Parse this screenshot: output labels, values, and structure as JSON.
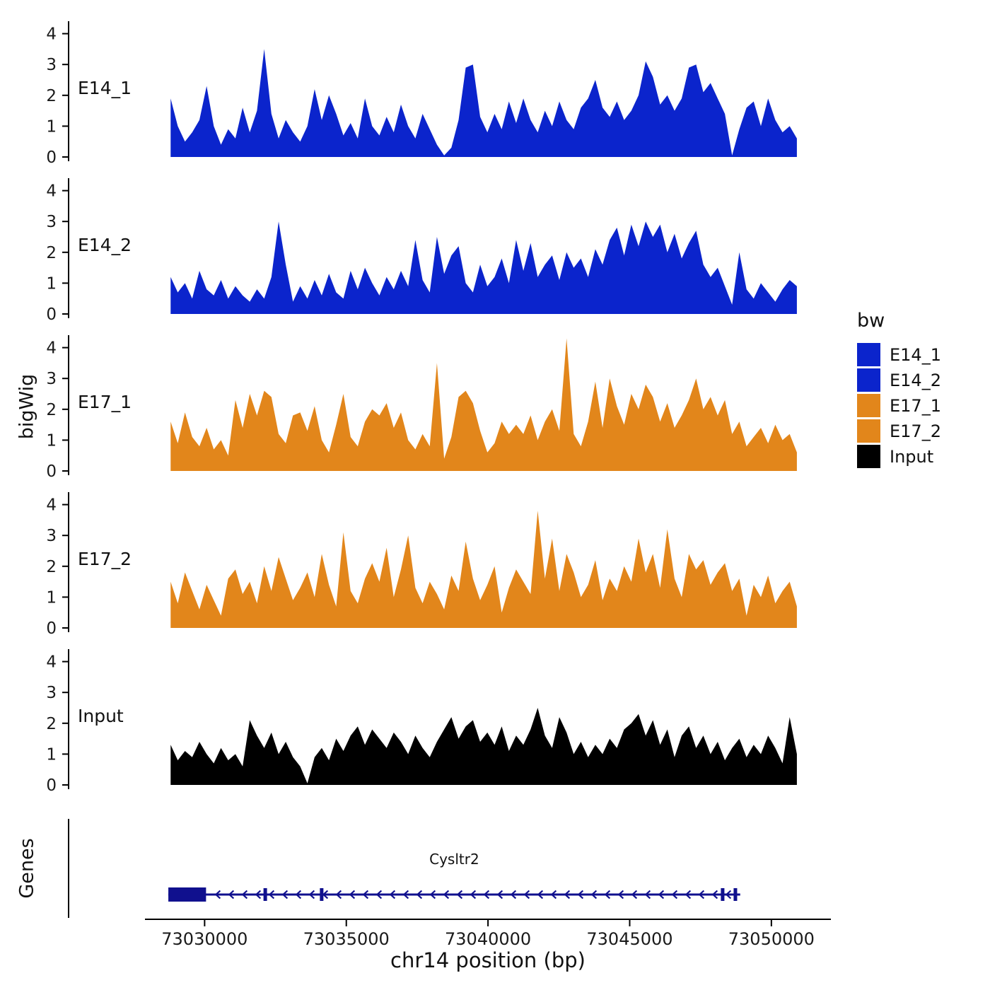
{
  "figure": {
    "ylabel": "bigWig",
    "genes_panel_label": "Genes",
    "xlabel": "chr14 position (bp)"
  },
  "legend": {
    "title": "bw",
    "entries": [
      {
        "label": "E14_1",
        "color": "#0b24cc"
      },
      {
        "label": "E14_2",
        "color": "#0b24cc"
      },
      {
        "label": "E17_1",
        "color": "#e2861b"
      },
      {
        "label": "E17_2",
        "color": "#e2861b"
      },
      {
        "label": "Input",
        "color": "#000000"
      }
    ]
  },
  "chart_data": {
    "type": "area",
    "title": "",
    "xlabel": "chr14 position (bp)",
    "ylabel": "bigWig",
    "xlim": [
      73025200,
      73052100
    ],
    "x_ticks": [
      73030000,
      73035000,
      73040000,
      73045000,
      73050000
    ],
    "ylim": [
      0,
      4.4
    ],
    "y_ticks": [
      0,
      1,
      2,
      3,
      4
    ],
    "grid": false,
    "legend_position": "right",
    "signal_x_start": 73028800,
    "signal_x_end": 73050900,
    "tracks": [
      {
        "name": "E14_1",
        "color": "#0b24cc",
        "values": [
          1.9,
          1.0,
          0.5,
          0.8,
          1.2,
          2.3,
          1.0,
          0.4,
          0.9,
          0.6,
          1.6,
          0.8,
          1.5,
          3.5,
          1.4,
          0.6,
          1.2,
          0.8,
          0.5,
          1.0,
          2.2,
          1.2,
          2.0,
          1.4,
          0.7,
          1.1,
          0.6,
          1.9,
          1.0,
          0.7,
          1.3,
          0.8,
          1.7,
          1.0,
          0.6,
          1.4,
          0.9,
          0.4,
          0.05,
          0.3,
          1.2,
          2.9,
          3.0,
          1.3,
          0.8,
          1.4,
          0.9,
          1.8,
          1.1,
          1.9,
          1.2,
          0.8,
          1.5,
          1.0,
          1.8,
          1.2,
          0.9,
          1.6,
          1.9,
          2.5,
          1.6,
          1.3,
          1.8,
          1.2,
          1.5,
          2.0,
          3.1,
          2.6,
          1.7,
          2.0,
          1.5,
          1.9,
          2.9,
          3.0,
          2.1,
          2.4,
          1.9,
          1.4,
          0.05,
          0.9,
          1.6,
          1.8,
          1.0,
          1.9,
          1.2,
          0.8,
          1.0,
          0.6
        ]
      },
      {
        "name": "E14_2",
        "color": "#0b24cc",
        "values": [
          1.2,
          0.7,
          1.0,
          0.5,
          1.4,
          0.8,
          0.6,
          1.1,
          0.5,
          0.9,
          0.6,
          0.4,
          0.8,
          0.5,
          1.2,
          3.0,
          1.6,
          0.4,
          0.9,
          0.5,
          1.1,
          0.6,
          1.3,
          0.7,
          0.5,
          1.4,
          0.8,
          1.5,
          1.0,
          0.6,
          1.2,
          0.8,
          1.4,
          0.9,
          2.4,
          1.1,
          0.7,
          2.5,
          1.3,
          1.9,
          2.2,
          1.0,
          0.7,
          1.6,
          0.9,
          1.2,
          1.8,
          1.0,
          2.4,
          1.4,
          2.3,
          1.2,
          1.6,
          1.9,
          1.1,
          2.0,
          1.5,
          1.8,
          1.2,
          2.1,
          1.6,
          2.4,
          2.8,
          1.9,
          2.9,
          2.2,
          3.0,
          2.5,
          2.9,
          2.0,
          2.6,
          1.8,
          2.3,
          2.7,
          1.6,
          1.2,
          1.5,
          0.9,
          0.3,
          2.0,
          0.8,
          0.5,
          1.0,
          0.7,
          0.4,
          0.8,
          1.1,
          0.9
        ]
      },
      {
        "name": "E17_1",
        "color": "#e2861b",
        "values": [
          1.6,
          0.9,
          1.9,
          1.1,
          0.8,
          1.4,
          0.7,
          1.0,
          0.5,
          2.3,
          1.4,
          2.5,
          1.8,
          2.6,
          2.4,
          1.2,
          0.9,
          1.8,
          1.9,
          1.3,
          2.1,
          1.0,
          0.6,
          1.5,
          2.5,
          1.1,
          0.8,
          1.6,
          2.0,
          1.8,
          2.2,
          1.4,
          1.9,
          1.0,
          0.7,
          1.2,
          0.8,
          3.5,
          0.4,
          1.1,
          2.4,
          2.6,
          2.2,
          1.3,
          0.6,
          0.9,
          1.6,
          1.2,
          1.5,
          1.2,
          1.8,
          1.0,
          1.6,
          2.0,
          1.3,
          4.3,
          1.2,
          0.8,
          1.6,
          2.9,
          1.4,
          3.0,
          2.1,
          1.5,
          2.5,
          2.0,
          2.8,
          2.4,
          1.6,
          2.2,
          1.4,
          1.8,
          2.3,
          3.0,
          2.0,
          2.4,
          1.8,
          2.3,
          1.2,
          1.6,
          0.8,
          1.1,
          1.4,
          0.9,
          1.5,
          1.0,
          1.2,
          0.6
        ]
      },
      {
        "name": "E17_2",
        "color": "#e2861b",
        "values": [
          1.5,
          0.8,
          1.8,
          1.2,
          0.6,
          1.4,
          0.9,
          0.4,
          1.6,
          1.9,
          1.1,
          1.5,
          0.8,
          2.0,
          1.2,
          2.3,
          1.6,
          0.9,
          1.3,
          1.8,
          1.0,
          2.4,
          1.4,
          0.7,
          3.1,
          1.2,
          0.8,
          1.6,
          2.1,
          1.5,
          2.6,
          1.0,
          1.9,
          3.0,
          1.3,
          0.8,
          1.5,
          1.1,
          0.6,
          1.7,
          1.2,
          2.8,
          1.6,
          0.9,
          1.4,
          2.0,
          0.5,
          1.3,
          1.9,
          1.5,
          1.1,
          3.8,
          1.6,
          2.9,
          1.2,
          2.4,
          1.8,
          1.0,
          1.4,
          2.2,
          0.9,
          1.6,
          1.2,
          2.0,
          1.5,
          2.9,
          1.8,
          2.4,
          1.3,
          3.2,
          1.6,
          1.0,
          2.4,
          1.9,
          2.2,
          1.4,
          1.8,
          2.1,
          1.2,
          1.6,
          0.4,
          1.4,
          1.0,
          1.7,
          0.8,
          1.2,
          1.5,
          0.7
        ]
      },
      {
        "name": "Input",
        "color": "#000000",
        "values": [
          1.3,
          0.8,
          1.1,
          0.9,
          1.4,
          1.0,
          0.7,
          1.2,
          0.8,
          1.0,
          0.6,
          2.1,
          1.6,
          1.2,
          1.7,
          1.0,
          1.4,
          0.9,
          0.6,
          0.05,
          0.9,
          1.2,
          0.8,
          1.5,
          1.1,
          1.6,
          1.9,
          1.3,
          1.8,
          1.5,
          1.2,
          1.7,
          1.4,
          1.0,
          1.6,
          1.2,
          0.9,
          1.4,
          1.8,
          2.2,
          1.5,
          1.9,
          2.1,
          1.4,
          1.7,
          1.3,
          1.9,
          1.1,
          1.6,
          1.3,
          1.8,
          2.5,
          1.6,
          1.2,
          2.2,
          1.7,
          1.0,
          1.4,
          0.9,
          1.3,
          1.0,
          1.5,
          1.2,
          1.8,
          2.0,
          2.3,
          1.6,
          2.1,
          1.3,
          1.8,
          0.9,
          1.6,
          1.9,
          1.2,
          1.6,
          1.0,
          1.4,
          0.8,
          1.2,
          1.5,
          0.9,
          1.3,
          1.0,
          1.6,
          1.2,
          0.7,
          2.2,
          1.0
        ]
      }
    ],
    "gene_track": {
      "label": "Genes",
      "gene": {
        "name": "Cysltr2",
        "strand": "-",
        "color": "#10108e",
        "line_start": 73028720,
        "line_end": 73048900,
        "thick_exon": [
          73028720,
          73030050
        ],
        "exons": [
          73032140,
          73034130,
          73048280,
          73048730
        ]
      }
    }
  }
}
